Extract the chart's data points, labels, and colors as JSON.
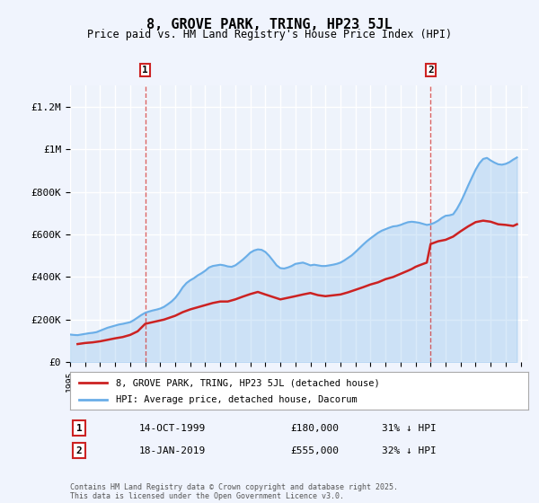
{
  "title": "8, GROVE PARK, TRING, HP23 5JL",
  "subtitle": "Price paid vs. HM Land Registry's House Price Index (HPI)",
  "ylabel_ticks": [
    "£0",
    "£200K",
    "£400K",
    "£600K",
    "£800K",
    "£1M",
    "£1.2M"
  ],
  "ylim": [
    0,
    1300000
  ],
  "xlim_start": 1995.0,
  "xlim_end": 2025.5,
  "bg_color": "#eef3fb",
  "plot_bg_color": "#eef3fb",
  "grid_color": "#ffffff",
  "hpi_color": "#6aaee8",
  "price_color": "#cc2222",
  "annotation1": {
    "x": 2000.0,
    "label": "1",
    "date": "14-OCT-1999",
    "price": "£180,000",
    "hpi_note": "31% ↓ HPI"
  },
  "annotation2": {
    "x": 2019.0,
    "label": "2",
    "date": "18-JAN-2019",
    "price": "£555,000",
    "hpi_note": "32% ↓ HPI"
  },
  "legend_entry1": "8, GROVE PARK, TRING, HP23 5JL (detached house)",
  "legend_entry2": "HPI: Average price, detached house, Dacorum",
  "footer": "Contains HM Land Registry data © Crown copyright and database right 2025.\nThis data is licensed under the Open Government Licence v3.0.",
  "hpi_data": {
    "years": [
      1995.0,
      1995.25,
      1995.5,
      1995.75,
      1996.0,
      1996.25,
      1996.5,
      1996.75,
      1997.0,
      1997.25,
      1997.5,
      1997.75,
      1998.0,
      1998.25,
      1998.5,
      1998.75,
      1999.0,
      1999.25,
      1999.5,
      1999.75,
      2000.0,
      2000.25,
      2000.5,
      2000.75,
      2001.0,
      2001.25,
      2001.5,
      2001.75,
      2002.0,
      2002.25,
      2002.5,
      2002.75,
      2003.0,
      2003.25,
      2003.5,
      2003.75,
      2004.0,
      2004.25,
      2004.5,
      2004.75,
      2005.0,
      2005.25,
      2005.5,
      2005.75,
      2006.0,
      2006.25,
      2006.5,
      2006.75,
      2007.0,
      2007.25,
      2007.5,
      2007.75,
      2008.0,
      2008.25,
      2008.5,
      2008.75,
      2009.0,
      2009.25,
      2009.5,
      2009.75,
      2010.0,
      2010.25,
      2010.5,
      2010.75,
      2011.0,
      2011.25,
      2011.5,
      2011.75,
      2012.0,
      2012.25,
      2012.5,
      2012.75,
      2013.0,
      2013.25,
      2013.5,
      2013.75,
      2014.0,
      2014.25,
      2014.5,
      2014.75,
      2015.0,
      2015.25,
      2015.5,
      2015.75,
      2016.0,
      2016.25,
      2016.5,
      2016.75,
      2017.0,
      2017.25,
      2017.5,
      2017.75,
      2018.0,
      2018.25,
      2018.5,
      2018.75,
      2019.0,
      2019.25,
      2019.5,
      2019.75,
      2020.0,
      2020.25,
      2020.5,
      2020.75,
      2021.0,
      2021.25,
      2021.5,
      2021.75,
      2022.0,
      2022.25,
      2022.5,
      2022.75,
      2023.0,
      2023.25,
      2023.5,
      2023.75,
      2024.0,
      2024.25,
      2024.5,
      2024.75
    ],
    "values": [
      130000,
      128000,
      127000,
      130000,
      133000,
      136000,
      138000,
      141000,
      148000,
      155000,
      162000,
      167000,
      172000,
      177000,
      180000,
      184000,
      188000,
      198000,
      210000,
      222000,
      232000,
      238000,
      243000,
      247000,
      252000,
      260000,
      272000,
      285000,
      302000,
      325000,
      352000,
      372000,
      385000,
      395000,
      408000,
      418000,
      430000,
      445000,
      452000,
      455000,
      458000,
      455000,
      450000,
      448000,
      455000,
      468000,
      482000,
      498000,
      515000,
      525000,
      530000,
      528000,
      518000,
      500000,
      478000,
      455000,
      442000,
      440000,
      445000,
      452000,
      462000,
      465000,
      468000,
      462000,
      455000,
      458000,
      455000,
      452000,
      452000,
      455000,
      458000,
      462000,
      468000,
      478000,
      490000,
      502000,
      518000,
      535000,
      552000,
      568000,
      582000,
      595000,
      608000,
      618000,
      625000,
      632000,
      638000,
      640000,
      645000,
      652000,
      658000,
      660000,
      658000,
      655000,
      650000,
      645000,
      648000,
      655000,
      665000,
      678000,
      688000,
      690000,
      695000,
      720000,
      752000,
      790000,
      830000,
      868000,
      905000,
      935000,
      955000,
      960000,
      948000,
      938000,
      930000,
      928000,
      932000,
      940000,
      952000,
      962000
    ]
  },
  "price_data": {
    "years": [
      1995.5,
      1996.0,
      1996.5,
      1997.0,
      1997.5,
      1998.0,
      1998.5,
      1999.0,
      1999.5,
      2000.0,
      2000.75,
      2001.25,
      2002.0,
      2002.5,
      2003.0,
      2004.0,
      2004.5,
      2005.0,
      2005.5,
      2006.0,
      2006.5,
      2007.0,
      2007.5,
      2008.0,
      2009.0,
      2010.0,
      2010.5,
      2011.0,
      2011.5,
      2012.0,
      2013.0,
      2013.5,
      2014.0,
      2014.5,
      2015.0,
      2015.5,
      2016.0,
      2016.5,
      2017.0,
      2017.5,
      2017.75,
      2018.0,
      2018.25,
      2018.75,
      2019.0,
      2019.5,
      2020.0,
      2020.5,
      2021.0,
      2021.5,
      2022.0,
      2022.5,
      2023.0,
      2023.5,
      2024.0,
      2024.5,
      2024.75
    ],
    "values": [
      85000,
      90000,
      93000,
      98000,
      105000,
      112000,
      118000,
      128000,
      145000,
      180000,
      192000,
      200000,
      218000,
      235000,
      248000,
      268000,
      278000,
      285000,
      285000,
      295000,
      308000,
      320000,
      330000,
      318000,
      295000,
      310000,
      318000,
      325000,
      315000,
      310000,
      318000,
      328000,
      340000,
      352000,
      365000,
      375000,
      390000,
      400000,
      415000,
      430000,
      438000,
      448000,
      455000,
      468000,
      555000,
      568000,
      575000,
      590000,
      615000,
      638000,
      658000,
      665000,
      660000,
      648000,
      645000,
      640000,
      648000
    ]
  }
}
